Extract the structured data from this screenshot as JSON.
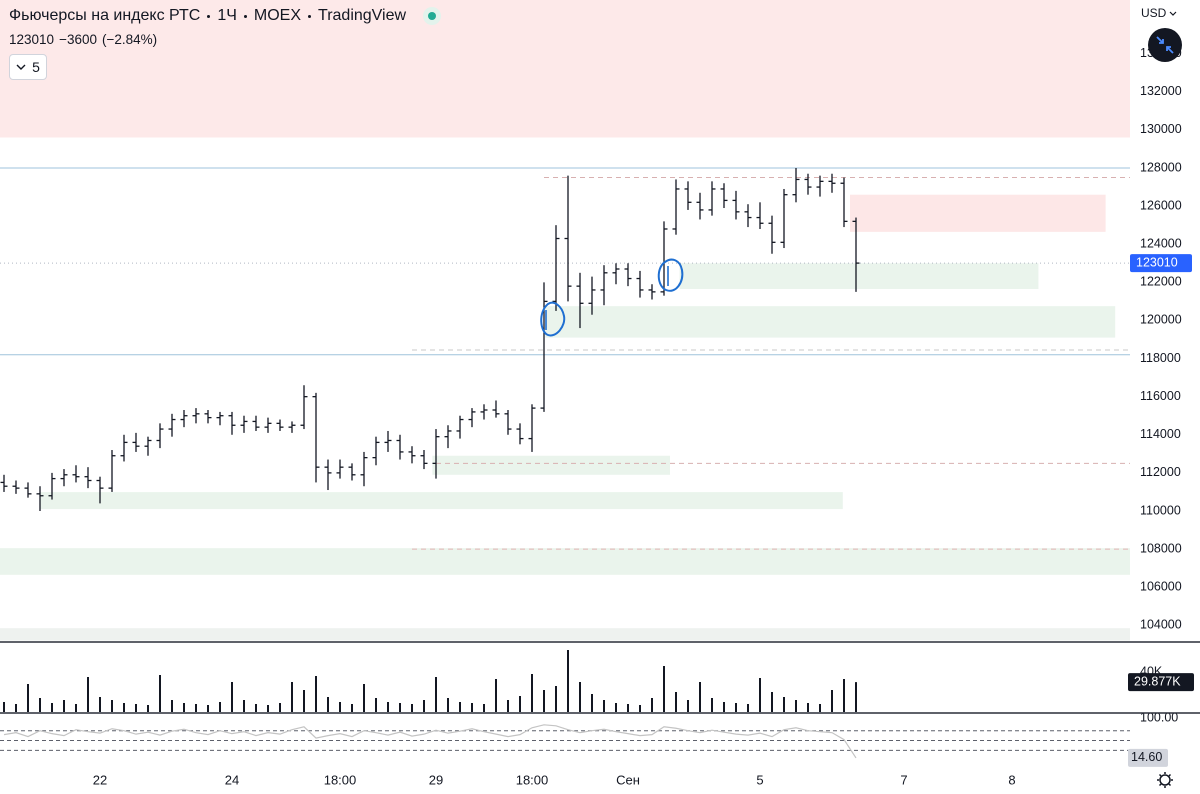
{
  "header": {
    "symbol": "Фьючерсы на индекс РТС",
    "interval": "1Ч",
    "exchange": "MOEX",
    "source": "TradingView",
    "change": "−3600",
    "change_pct": "(−2.84%)",
    "indicators_collapsed": "5"
  },
  "ui": {
    "currency": "USD"
  },
  "chart_data": {
    "type": "ohlc",
    "categories": [
      null,
      null,
      null,
      null,
      null,
      null,
      null,
      null,
      "22",
      null,
      null,
      null,
      null,
      null,
      null,
      null,
      null,
      null,
      null,
      "24",
      null,
      null,
      null,
      null,
      null,
      null,
      null,
      null,
      "18:00",
      null,
      null,
      null,
      null,
      null,
      null,
      null,
      "29",
      null,
      null,
      null,
      null,
      null,
      null,
      null,
      "18:00",
      null,
      null,
      null,
      null,
      null,
      null,
      null,
      "Сен",
      null,
      null,
      null,
      null,
      null,
      null,
      null,
      null,
      null,
      null,
      "5",
      null,
      null,
      null,
      null,
      null,
      null,
      null,
      null,
      null,
      null,
      null,
      "7",
      null,
      null,
      null,
      null,
      null,
      null,
      null,
      null,
      "8"
    ],
    "open": [
      111500,
      111300,
      111200,
      110900,
      110800,
      111700,
      111900,
      111800,
      111600,
      111200,
      112900,
      113600,
      113400,
      113700,
      114300,
      114800,
      115000,
      115100,
      114900,
      115000,
      114500,
      114700,
      114400,
      114600,
      114400,
      114500,
      116000,
      112300,
      112000,
      112300,
      111900,
      112800,
      113600,
      113700,
      113100,
      112900,
      112500,
      113900,
      114200,
      114800,
      115200,
      115300,
      115100,
      114300,
      113800,
      115400,
      121000,
      124300,
      121800,
      120900,
      121600,
      122500,
      122700,
      122200,
      121600,
      121500,
      124800,
      126900,
      126200,
      125800,
      126900,
      126300,
      125700,
      125400,
      125100,
      124100,
      126600,
      127400,
      127000,
      127300,
      127200,
      125200,
      null,
      null,
      null,
      null,
      null,
      null,
      null,
      null,
      null,
      null,
      null,
      null,
      null
    ],
    "high": [
      111900,
      111600,
      111500,
      111300,
      112000,
      112200,
      112400,
      112300,
      111800,
      113200,
      114000,
      114100,
      113900,
      114600,
      115100,
      115300,
      115400,
      115300,
      115200,
      115200,
      115000,
      115000,
      114900,
      114800,
      114700,
      116600,
      116200,
      112700,
      112700,
      112500,
      113100,
      113900,
      114200,
      114000,
      113400,
      113200,
      114300,
      114500,
      115000,
      115400,
      115600,
      115800,
      115300,
      114600,
      115600,
      122000,
      125000,
      127600,
      122500,
      122300,
      122900,
      123000,
      123000,
      122600,
      121900,
      125200,
      127400,
      127300,
      126700,
      127300,
      127200,
      126800,
      126100,
      126200,
      125500,
      126900,
      128000,
      127700,
      127600,
      127700,
      127500,
      125400,
      null,
      null,
      null,
      null,
      null,
      null,
      null,
      null,
      null,
      null,
      null,
      null,
      null
    ],
    "low": [
      111000,
      110900,
      110700,
      110000,
      110600,
      111300,
      111500,
      111200,
      110400,
      111000,
      112600,
      113100,
      112900,
      113300,
      113900,
      114400,
      114600,
      114600,
      114500,
      114000,
      114100,
      114200,
      114100,
      114200,
      114100,
      114300,
      111500,
      111100,
      111700,
      111600,
      111300,
      112400,
      113100,
      112700,
      112500,
      112200,
      111700,
      113300,
      113800,
      114400,
      114800,
      114900,
      114000,
      113500,
      113100,
      115200,
      120500,
      121000,
      119600,
      120300,
      120800,
      121900,
      121800,
      121200,
      121100,
      121300,
      124500,
      125800,
      125300,
      125500,
      125900,
      125300,
      124900,
      124800,
      123500,
      123800,
      126200,
      126600,
      126500,
      126700,
      124900,
      121500,
      null,
      null,
      null,
      null,
      null,
      null,
      null,
      null,
      null,
      null,
      null,
      null,
      null
    ],
    "close": [
      111300,
      111200,
      110900,
      110800,
      111700,
      111900,
      111800,
      111600,
      111200,
      112900,
      113600,
      113400,
      113700,
      114300,
      114800,
      115000,
      115100,
      114900,
      115000,
      114500,
      114700,
      114400,
      114600,
      114400,
      114500,
      116000,
      112300,
      112000,
      112300,
      111900,
      112800,
      113600,
      113700,
      113100,
      112900,
      112500,
      113900,
      114200,
      114800,
      115200,
      115300,
      115100,
      114300,
      113800,
      115400,
      121000,
      124300,
      121800,
      120900,
      121600,
      122500,
      122700,
      122200,
      121600,
      121500,
      124800,
      126900,
      126200,
      125800,
      126900,
      126300,
      125700,
      125400,
      125100,
      124100,
      126600,
      127400,
      127000,
      127300,
      127200,
      125200,
      123010,
      null,
      null,
      null,
      null,
      null,
      null,
      null,
      null,
      null,
      null,
      null,
      null,
      null
    ],
    "color": "#131722",
    "price_line_color": "#2962ff",
    "ylim": [
      103125,
      136817
    ],
    "yticks": [
      104000,
      106000,
      108000,
      110000,
      112000,
      114000,
      116000,
      118000,
      120000,
      122000,
      124000,
      126000,
      128000,
      130000,
      132000,
      134000
    ],
    "zones": [
      {
        "low": 129600,
        "high": 136817,
        "x_from": -1,
        "x_to": 94,
        "color": "#fde9e9"
      },
      {
        "low": 124650,
        "high": 126600,
        "x_from": 70.5,
        "x_to": 91.8,
        "color": "#fde7e7"
      },
      {
        "low": 121650,
        "high": 123000,
        "x_from": 56.3,
        "x_to": 86.2,
        "color": "#eaf4ec"
      },
      {
        "low": 119100,
        "high": 120750,
        "x_from": 45.1,
        "x_to": 92.6,
        "color": "#eaf4ec"
      },
      {
        "low": 111900,
        "high": 112900,
        "x_from": 35.7,
        "x_to": 55.5,
        "color": "#eaf4ec"
      },
      {
        "low": 110100,
        "high": 110990,
        "x_from": 3,
        "x_to": 69.9,
        "color": "#eaf4ec"
      },
      {
        "low": 106650,
        "high": 108050,
        "x_from": -1,
        "x_to": 94,
        "color": "#eaf4ec"
      },
      {
        "low": 103200,
        "high": 103850,
        "x_from": -1,
        "x_to": 94,
        "color": "#eef2ef"
      }
    ],
    "levels": [
      {
        "value": 128000,
        "x_from": -1,
        "x_to": 94,
        "color": "#9fc3dc",
        "style": "solid"
      },
      {
        "value": 118200,
        "x_from": -1,
        "x_to": 94,
        "color": "#9fc3dc",
        "style": "solid"
      },
      {
        "value": 127500,
        "x_from": 45,
        "x_to": 94,
        "color": "#d8b0b0",
        "style": "dashed"
      },
      {
        "value": 118450,
        "x_from": 34,
        "x_to": 94,
        "color": "#c9c9c9",
        "style": "dashed"
      },
      {
        "value": 112500,
        "x_from": 36,
        "x_to": 94,
        "color": "#d8b0b0",
        "style": "dashed"
      },
      {
        "value": 108000,
        "x_from": 34,
        "x_to": 94,
        "color": "#e2b4b4",
        "style": "dashed"
      }
    ],
    "volume": {
      "type": "bar",
      "color": "#131722",
      "values": [
        10000,
        8000,
        28000,
        14000,
        9000,
        12000,
        8000,
        35000,
        15000,
        12000,
        9000,
        8000,
        7000,
        37000,
        12000,
        9000,
        8000,
        7000,
        10000,
        30000,
        12000,
        8000,
        7000,
        9000,
        30000,
        22000,
        36000,
        15000,
        10000,
        8000,
        28000,
        14000,
        10000,
        9000,
        8000,
        12000,
        35000,
        14000,
        10000,
        9000,
        8000,
        33000,
        12000,
        16000,
        38000,
        22000,
        26000,
        62000,
        30000,
        18000,
        12000,
        9000,
        8000,
        7000,
        14000,
        46000,
        20000,
        12000,
        30000,
        14000,
        10000,
        9000,
        8000,
        34000,
        20000,
        15000,
        12000,
        9000,
        8000,
        22000,
        33000,
        29877,
        null,
        null,
        null,
        null,
        null,
        null,
        null,
        null,
        null,
        null,
        null,
        null,
        null
      ],
      "ylim": [
        0,
        67000
      ],
      "yticks": [
        {
          "value": 40000,
          "label": "40K"
        }
      ],
      "last_label": "29.877K"
    },
    "indicator": {
      "type": "line",
      "color": "#c4c4c4",
      "values": [
        62,
        66,
        58,
        70,
        64,
        60,
        72,
        68,
        65,
        74,
        70,
        63,
        67,
        61,
        69,
        73,
        66,
        62,
        70,
        64,
        68,
        60,
        66,
        63,
        72,
        78,
        55,
        60,
        64,
        58,
        70,
        66,
        61,
        67,
        59,
        63,
        71,
        65,
        69,
        74,
        68,
        63,
        58,
        62,
        76,
        82,
        80,
        72,
        66,
        70,
        73,
        68,
        64,
        60,
        62,
        78,
        75,
        70,
        66,
        71,
        67,
        63,
        61,
        65,
        58,
        72,
        76,
        70,
        68,
        66,
        52,
        14.6,
        null,
        null,
        null,
        null,
        null,
        null,
        null,
        null,
        null,
        null,
        null,
        null,
        null
      ],
      "ylim": [
        -10,
        104
      ],
      "yticks": [
        {
          "value": 100,
          "label": "100.00"
        }
      ],
      "levels": [
        70,
        50,
        30
      ],
      "last_label": "14.60"
    }
  }
}
